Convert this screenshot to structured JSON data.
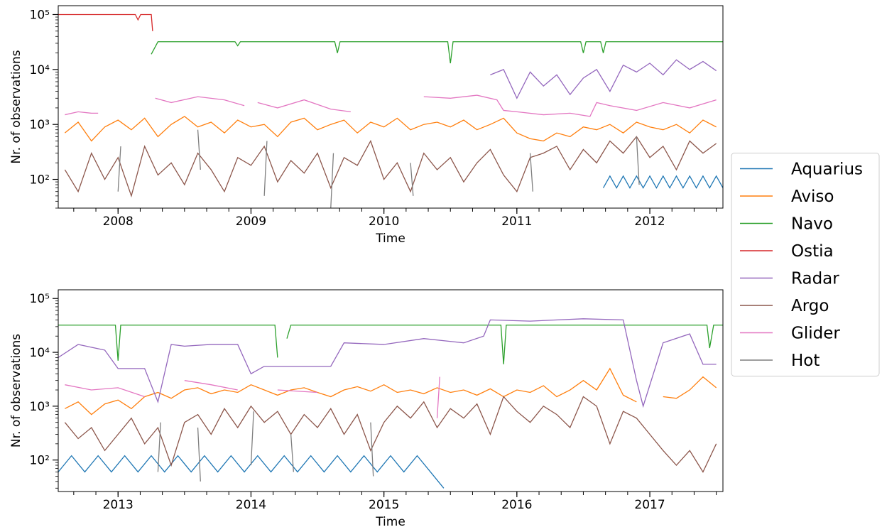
{
  "chart_data": [
    {
      "type": "line",
      "yscale": "log",
      "xlabel": "Time",
      "ylabel": "Nr. of observations",
      "legend": "center right",
      "xlim": [
        2007.55,
        2012.55
      ],
      "xticks": [
        2008,
        2009,
        2010,
        2011,
        2012
      ],
      "ylim": [
        30,
        145000
      ],
      "yticks": [
        {
          "value": 100,
          "label": "10²"
        },
        {
          "value": 1000,
          "label": "10³"
        },
        {
          "value": 10000,
          "label": "10⁴"
        },
        {
          "value": 100000,
          "label": "10⁵"
        }
      ],
      "series": [
        {
          "name": "Aquarius",
          "color": "#1f77b4",
          "x": [
            2011.65,
            2011.7,
            2011.75,
            2011.8,
            2011.85,
            2011.9,
            2011.95,
            2012.0,
            2012.05,
            2012.1,
            2012.15,
            2012.2,
            2012.25,
            2012.3,
            2012.35,
            2012.4,
            2012.45,
            2012.5,
            2012.55
          ],
          "values": [
            70,
            115,
            70,
            115,
            70,
            115,
            70,
            115,
            70,
            115,
            70,
            115,
            70,
            115,
            70,
            115,
            70,
            115,
            70
          ]
        },
        {
          "name": "Aviso",
          "color": "#ff7f0e",
          "x": [
            2007.6,
            2007.7,
            2007.8,
            2007.9,
            2008.0,
            2008.1,
            2008.2,
            2008.3,
            2008.4,
            2008.5,
            2008.6,
            2008.7,
            2008.8,
            2008.9,
            2009.0,
            2009.1,
            2009.2,
            2009.3,
            2009.4,
            2009.5,
            2009.6,
            2009.7,
            2009.8,
            2009.9,
            2010.0,
            2010.1,
            2010.2,
            2010.3,
            2010.4,
            2010.5,
            2010.6,
            2010.7,
            2010.8,
            2010.9,
            2011.0,
            2011.1,
            2011.2,
            2011.3,
            2011.4,
            2011.5,
            2011.6,
            2011.7,
            2011.8,
            2011.9,
            2012.0,
            2012.1,
            2012.2,
            2012.3,
            2012.4,
            2012.5
          ],
          "values": [
            700,
            1100,
            500,
            900,
            1200,
            800,
            1300,
            600,
            1000,
            1400,
            900,
            1100,
            700,
            1200,
            900,
            1000,
            600,
            1100,
            1300,
            800,
            1000,
            1200,
            700,
            1100,
            900,
            1300,
            800,
            1000,
            1100,
            900,
            1200,
            800,
            1000,
            1300,
            700,
            550,
            500,
            700,
            600,
            900,
            800,
            1000,
            700,
            1100,
            900,
            800,
            1000,
            700,
            1200,
            900
          ]
        },
        {
          "name": "Navo",
          "color": "#2ca02c",
          "x": [
            2008.25,
            2008.3,
            2008.88,
            2008.9,
            2008.92,
            2009.63,
            2009.65,
            2009.67,
            2010.48,
            2010.5,
            2010.52,
            2011.48,
            2011.5,
            2011.52,
            2011.63,
            2011.65,
            2011.67,
            2012.55
          ],
          "values": [
            19000,
            32000,
            32000,
            27000,
            32000,
            32000,
            20000,
            32000,
            32000,
            13000,
            32000,
            32000,
            20000,
            32000,
            32000,
            20000,
            32000,
            32000
          ]
        },
        {
          "name": "Ostia",
          "color": "#d62728",
          "x": [
            2007.55,
            2008.13,
            2008.15,
            2008.17,
            2008.23,
            2008.25,
            2008.26
          ],
          "values": [
            100000,
            100000,
            80000,
            100000,
            100000,
            100000,
            50000
          ]
        },
        {
          "name": "Radar",
          "color": "#9467bd",
          "x": [
            2010.8,
            2010.9,
            2011.0,
            2011.1,
            2011.2,
            2011.3,
            2011.4,
            2011.5,
            2011.6,
            2011.7,
            2011.8,
            2011.9,
            2012.0,
            2012.1,
            2012.2,
            2012.3,
            2012.4,
            2012.5
          ],
          "values": [
            8000,
            10000,
            3000,
            9000,
            5000,
            8000,
            3500,
            7000,
            10000,
            4000,
            12000,
            9000,
            13000,
            8000,
            15000,
            10000,
            14000,
            9500
          ]
        },
        {
          "name": "Argo",
          "color": "#8c564b",
          "x": [
            2007.6,
            2007.7,
            2007.8,
            2007.9,
            2008.0,
            2008.1,
            2008.2,
            2008.3,
            2008.4,
            2008.5,
            2008.6,
            2008.7,
            2008.8,
            2008.9,
            2009.0,
            2009.1,
            2009.2,
            2009.3,
            2009.4,
            2009.5,
            2009.6,
            2009.7,
            2009.8,
            2009.9,
            2010.0,
            2010.1,
            2010.2,
            2010.3,
            2010.4,
            2010.5,
            2010.6,
            2010.7,
            2010.8,
            2010.9,
            2011.0,
            2011.1,
            2011.2,
            2011.3,
            2011.4,
            2011.5,
            2011.6,
            2011.7,
            2011.8,
            2011.9,
            2012.0,
            2012.1,
            2012.2,
            2012.3,
            2012.4,
            2012.5
          ],
          "values": [
            150,
            60,
            300,
            100,
            250,
            50,
            400,
            120,
            200,
            80,
            300,
            150,
            60,
            250,
            180,
            400,
            90,
            220,
            130,
            300,
            70,
            250,
            180,
            500,
            100,
            200,
            60,
            300,
            150,
            250,
            90,
            200,
            350,
            120,
            60,
            250,
            300,
            400,
            150,
            350,
            200,
            500,
            300,
            600,
            250,
            400,
            150,
            500,
            300,
            450
          ]
        },
        {
          "name": "Glider",
          "color": "#e377c2",
          "x": [
            2007.6,
            2007.7,
            2007.8,
            2007.85,
            2007.9,
            2008.28,
            2008.4,
            2008.6,
            2008.8,
            2008.95,
            2009.0,
            2009.05,
            2009.2,
            2009.4,
            2009.6,
            2009.75,
            2009.8,
            2010.3,
            2010.5,
            2010.7,
            2010.85,
            2010.9,
            2011.0,
            2011.2,
            2011.4,
            2011.55,
            2011.6,
            2011.7,
            2011.9,
            2012.1,
            2012.3,
            2012.5
          ],
          "values": [
            1500,
            1700,
            1600,
            1600,
            null,
            3000,
            2500,
            3200,
            2800,
            2200,
            null,
            2500,
            2000,
            2800,
            1900,
            1700,
            null,
            3200,
            3000,
            3400,
            2800,
            1800,
            1700,
            1500,
            1600,
            1400,
            2500,
            2200,
            1800,
            2500,
            2000,
            2800
          ]
        },
        {
          "name": "Hot",
          "color": "#7f7f7f",
          "x": [
            2008.0,
            2008.02,
            2008.04,
            2008.6,
            2008.62,
            2008.64,
            2009.1,
            2009.12,
            2009.14,
            2009.6,
            2009.62,
            2009.64,
            2010.2,
            2010.22,
            2010.24,
            2011.1,
            2011.12,
            2011.14,
            2011.9,
            2011.92,
            2011.94
          ],
          "values": [
            60,
            400,
            null,
            800,
            150,
            null,
            50,
            500,
            null,
            30,
            300,
            null,
            200,
            50,
            null,
            300,
            60,
            null,
            600,
            80,
            null
          ]
        }
      ]
    },
    {
      "type": "line",
      "yscale": "log",
      "xlabel": "Time",
      "ylabel": "Nr. of observations",
      "xlim": [
        2012.55,
        2017.55
      ],
      "xticks": [
        2013,
        2014,
        2015,
        2016,
        2017
      ],
      "ylim": [
        26,
        145000
      ],
      "yticks": [
        {
          "value": 100,
          "label": "10²"
        },
        {
          "value": 1000,
          "label": "10³"
        },
        {
          "value": 10000,
          "label": "10⁴"
        },
        {
          "value": 100000,
          "label": "10⁵"
        }
      ],
      "series": [
        {
          "color": "#1f77b4",
          "x": [
            2012.55,
            2012.65,
            2012.75,
            2012.85,
            2012.95,
            2013.05,
            2013.15,
            2013.25,
            2013.35,
            2013.45,
            2013.55,
            2013.65,
            2013.75,
            2013.85,
            2013.95,
            2014.05,
            2014.15,
            2014.25,
            2014.35,
            2014.45,
            2014.55,
            2014.65,
            2014.75,
            2014.85,
            2014.95,
            2015.05,
            2015.15,
            2015.25,
            2015.35,
            2015.45
          ],
          "values": [
            60,
            120,
            60,
            120,
            60,
            120,
            60,
            120,
            60,
            120,
            60,
            120,
            60,
            120,
            60,
            120,
            60,
            120,
            60,
            120,
            60,
            120,
            60,
            120,
            60,
            120,
            60,
            120,
            60,
            30
          ]
        },
        {
          "color": "#ff7f0e",
          "x": [
            2012.6,
            2012.7,
            2012.8,
            2012.9,
            2013.0,
            2013.1,
            2013.2,
            2013.3,
            2013.4,
            2013.5,
            2013.6,
            2013.7,
            2013.8,
            2013.9,
            2014.0,
            2014.1,
            2014.2,
            2014.3,
            2014.4,
            2014.5,
            2014.6,
            2014.7,
            2014.8,
            2014.9,
            2015.0,
            2015.1,
            2015.2,
            2015.3,
            2015.4,
            2015.5,
            2015.6,
            2015.7,
            2015.8,
            2015.9,
            2016.0,
            2016.1,
            2016.2,
            2016.3,
            2016.4,
            2016.5,
            2016.6,
            2016.7,
            2016.8,
            2016.9,
            2017.0,
            2017.1,
            2017.2,
            2017.3,
            2017.4,
            2017.5
          ],
          "values": [
            900,
            1200,
            700,
            1100,
            1300,
            900,
            1500,
            1800,
            1400,
            2000,
            2200,
            1700,
            2000,
            1800,
            2500,
            2000,
            1600,
            2000,
            2200,
            1800,
            1500,
            2000,
            2300,
            1900,
            2500,
            1800,
            2000,
            1700,
            2200,
            1800,
            2000,
            1600,
            2100,
            1500,
            2000,
            1800,
            2400,
            1500,
            2000,
            3000,
            2000,
            5000,
            1600,
            1200,
            null,
            1500,
            1400,
            2000,
            3500,
            2200
          ]
        },
        {
          "color": "#2ca02c",
          "x": [
            2012.55,
            2012.98,
            2013.0,
            2013.02,
            2013.05,
            2014.18,
            2014.2,
            2014.25,
            2014.27,
            2014.3,
            2015.88,
            2015.9,
            2015.92,
            2017.43,
            2017.45,
            2017.48,
            2017.55
          ],
          "values": [
            32000,
            32000,
            7000,
            32000,
            32000,
            32000,
            8000,
            null,
            18000,
            32000,
            32000,
            6000,
            32000,
            32000,
            12000,
            32000,
            32000
          ]
        },
        {
          "color": "#d62728",
          "x": [],
          "values": []
        },
        {
          "color": "#9467bd",
          "x": [
            2012.55,
            2012.7,
            2012.9,
            2013.0,
            2013.2,
            2013.3,
            2013.4,
            2013.5,
            2013.7,
            2013.9,
            2014.0,
            2014.1,
            2014.4,
            2014.6,
            2014.7,
            2015.0,
            2015.3,
            2015.6,
            2015.75,
            2015.8,
            2016.1,
            2016.5,
            2016.8,
            2016.9,
            2016.95,
            2017.1,
            2017.3,
            2017.4,
            2017.5
          ],
          "values": [
            8000,
            14000,
            11000,
            5000,
            5000,
            1200,
            14000,
            13000,
            14000,
            14000,
            4000,
            5500,
            5500,
            5500,
            15000,
            14000,
            18000,
            15000,
            20000,
            40000,
            38000,
            42000,
            40000,
            3000,
            1000,
            15000,
            22000,
            6000,
            6000
          ]
        },
        {
          "color": "#8c564b",
          "x": [
            2012.6,
            2012.7,
            2012.8,
            2012.9,
            2013.0,
            2013.1,
            2013.2,
            2013.3,
            2013.4,
            2013.5,
            2013.6,
            2013.7,
            2013.8,
            2013.9,
            2014.0,
            2014.1,
            2014.2,
            2014.3,
            2014.4,
            2014.5,
            2014.6,
            2014.7,
            2014.8,
            2014.9,
            2015.0,
            2015.1,
            2015.2,
            2015.3,
            2015.4,
            2015.5,
            2015.6,
            2015.7,
            2015.8,
            2015.9,
            2016.0,
            2016.1,
            2016.2,
            2016.3,
            2016.4,
            2016.5,
            2016.6,
            2016.7,
            2016.8,
            2016.9,
            2017.0,
            2017.1,
            2017.2,
            2017.3,
            2017.4,
            2017.5
          ],
          "values": [
            500,
            250,
            400,
            150,
            300,
            600,
            200,
            400,
            80,
            500,
            700,
            300,
            900,
            400,
            1000,
            500,
            800,
            300,
            700,
            400,
            900,
            300,
            700,
            150,
            500,
            1000,
            600,
            1200,
            400,
            900,
            600,
            1100,
            300,
            1500,
            800,
            500,
            1000,
            700,
            400,
            1500,
            1000,
            200,
            800,
            600,
            300,
            150,
            80,
            150,
            60,
            200
          ]
        },
        {
          "color": "#e377c2",
          "x": [
            2012.6,
            2012.8,
            2013.0,
            2013.2,
            2013.25,
            2013.5,
            2013.7,
            2013.9,
            2013.95,
            2014.2,
            2014.5,
            2015.38,
            2015.4,
            2015.42
          ],
          "values": [
            2500,
            2000,
            2200,
            1500,
            null,
            3000,
            2500,
            2000,
            null,
            2000,
            1800,
            null,
            600,
            3500
          ]
        },
        {
          "color": "#7f7f7f",
          "x": [
            2013.3,
            2013.32,
            2013.34,
            2013.6,
            2013.62,
            2013.64,
            2014.0,
            2014.02,
            2014.04,
            2014.3,
            2014.32,
            2014.34,
            2014.9,
            2014.92,
            2014.94
          ],
          "values": [
            60,
            500,
            null,
            400,
            40,
            null,
            80,
            800,
            null,
            300,
            60,
            null,
            500,
            50,
            null
          ]
        }
      ]
    }
  ]
}
